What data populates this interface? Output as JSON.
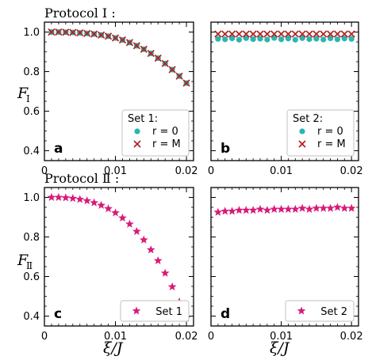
{
  "figure": {
    "protocol1_title": "Protocol Ⅰ :",
    "protocol2_title": "Protocol Ⅱ :",
    "ylabel_top_main": "F",
    "ylabel_top_sub": "Ⅰ",
    "ylabel_bottom_main": "F",
    "ylabel_bottom_sub": "Ⅱ",
    "xlabel": "ξ/J"
  },
  "chart_data": [
    {
      "type": "scatter",
      "panel": "a",
      "xlim": [
        0,
        0.021
      ],
      "ylim": [
        0.35,
        1.05
      ],
      "x_ticks": [
        "0",
        "0.01",
        "0.02"
      ],
      "y_ticks": [
        "0.4",
        "0.6",
        "0.8",
        "1.0"
      ],
      "legend_title": "Set 1:",
      "legend_position": "bottom-right",
      "series": [
        {
          "name": "r = 0",
          "marker": "circle",
          "color": "#2bb5b0",
          "x": [
            0.001,
            0.002,
            0.003,
            0.004,
            0.005,
            0.006,
            0.007,
            0.008,
            0.009,
            0.01,
            0.011,
            0.012,
            0.013,
            0.014,
            0.015,
            0.016,
            0.017,
            0.018,
            0.019,
            0.02
          ],
          "y": [
            1.0,
            1.0,
            0.999,
            0.998,
            0.996,
            0.993,
            0.99,
            0.985,
            0.979,
            0.97,
            0.96,
            0.947,
            0.931,
            0.913,
            0.892,
            0.868,
            0.841,
            0.81,
            0.777,
            0.742
          ]
        },
        {
          "name": "r = M",
          "marker": "cross",
          "color": "#b22222",
          "x": [
            0.001,
            0.002,
            0.003,
            0.004,
            0.005,
            0.006,
            0.007,
            0.008,
            0.009,
            0.01,
            0.011,
            0.012,
            0.013,
            0.014,
            0.015,
            0.016,
            0.017,
            0.018,
            0.019,
            0.02
          ],
          "y": [
            1.0,
            1.0,
            0.999,
            0.998,
            0.996,
            0.993,
            0.99,
            0.985,
            0.979,
            0.97,
            0.96,
            0.947,
            0.931,
            0.913,
            0.892,
            0.868,
            0.841,
            0.81,
            0.777,
            0.742
          ]
        }
      ]
    },
    {
      "type": "scatter",
      "panel": "b",
      "xlim": [
        0,
        0.021
      ],
      "ylim": [
        0.35,
        1.05
      ],
      "x_ticks": [
        "0",
        "0.01",
        "0.02"
      ],
      "legend_title": "Set 2:",
      "legend_position": "bottom-right",
      "series": [
        {
          "name": "r = 0",
          "marker": "circle",
          "color": "#2bb5b0",
          "x": [
            0.001,
            0.002,
            0.003,
            0.004,
            0.005,
            0.006,
            0.007,
            0.008,
            0.009,
            0.01,
            0.011,
            0.012,
            0.013,
            0.014,
            0.015,
            0.016,
            0.017,
            0.018,
            0.019,
            0.02
          ],
          "y": [
            0.965,
            0.963,
            0.968,
            0.961,
            0.969,
            0.964,
            0.966,
            0.962,
            0.97,
            0.963,
            0.967,
            0.961,
            0.969,
            0.964,
            0.966,
            0.962,
            0.968,
            0.963,
            0.967,
            0.965
          ]
        },
        {
          "name": "r = M",
          "marker": "cross",
          "color": "#b22222",
          "x": [
            0.001,
            0.002,
            0.003,
            0.004,
            0.005,
            0.006,
            0.007,
            0.008,
            0.009,
            0.01,
            0.011,
            0.012,
            0.013,
            0.014,
            0.015,
            0.016,
            0.017,
            0.018,
            0.019,
            0.02
          ],
          "y": [
            0.99,
            0.99,
            0.99,
            0.99,
            0.99,
            0.99,
            0.99,
            0.99,
            0.99,
            0.99,
            0.99,
            0.99,
            0.99,
            0.99,
            0.99,
            0.99,
            0.99,
            0.99,
            0.99,
            0.99
          ]
        }
      ]
    },
    {
      "type": "scatter",
      "panel": "c",
      "xlim": [
        0,
        0.021
      ],
      "ylim": [
        0.35,
        1.05
      ],
      "x_ticks": [
        "0",
        "0.01",
        "0.02"
      ],
      "y_ticks": [
        "0.4",
        "0.6",
        "0.8",
        "1.0"
      ],
      "legend_position": "bottom-right",
      "series": [
        {
          "name": "Set 1",
          "marker": "star",
          "color": "#d81b7a",
          "x": [
            0.001,
            0.002,
            0.003,
            0.004,
            0.005,
            0.006,
            0.007,
            0.008,
            0.009,
            0.01,
            0.011,
            0.012,
            0.013,
            0.014,
            0.015,
            0.016,
            0.017,
            0.018,
            0.019,
            0.02
          ],
          "y": [
            1.0,
            1.0,
            0.998,
            0.995,
            0.99,
            0.983,
            0.973,
            0.96,
            0.943,
            0.922,
            0.896,
            0.865,
            0.828,
            0.785,
            0.735,
            0.68,
            0.617,
            0.548,
            0.472,
            0.39
          ]
        }
      ]
    },
    {
      "type": "scatter",
      "panel": "d",
      "xlim": [
        0,
        0.021
      ],
      "ylim": [
        0.35,
        1.05
      ],
      "x_ticks": [
        "0",
        "0.01",
        "0.02"
      ],
      "legend_position": "bottom-right",
      "series": [
        {
          "name": "Set 2",
          "marker": "star",
          "color": "#d81b7a",
          "x": [
            0.001,
            0.002,
            0.003,
            0.004,
            0.005,
            0.006,
            0.007,
            0.008,
            0.009,
            0.01,
            0.011,
            0.012,
            0.013,
            0.014,
            0.015,
            0.016,
            0.017,
            0.018,
            0.019,
            0.02
          ],
          "y": [
            0.925,
            0.93,
            0.93,
            0.935,
            0.935,
            0.935,
            0.94,
            0.935,
            0.94,
            0.94,
            0.94,
            0.94,
            0.945,
            0.94,
            0.945,
            0.945,
            0.945,
            0.95,
            0.945,
            0.945
          ]
        }
      ]
    }
  ]
}
